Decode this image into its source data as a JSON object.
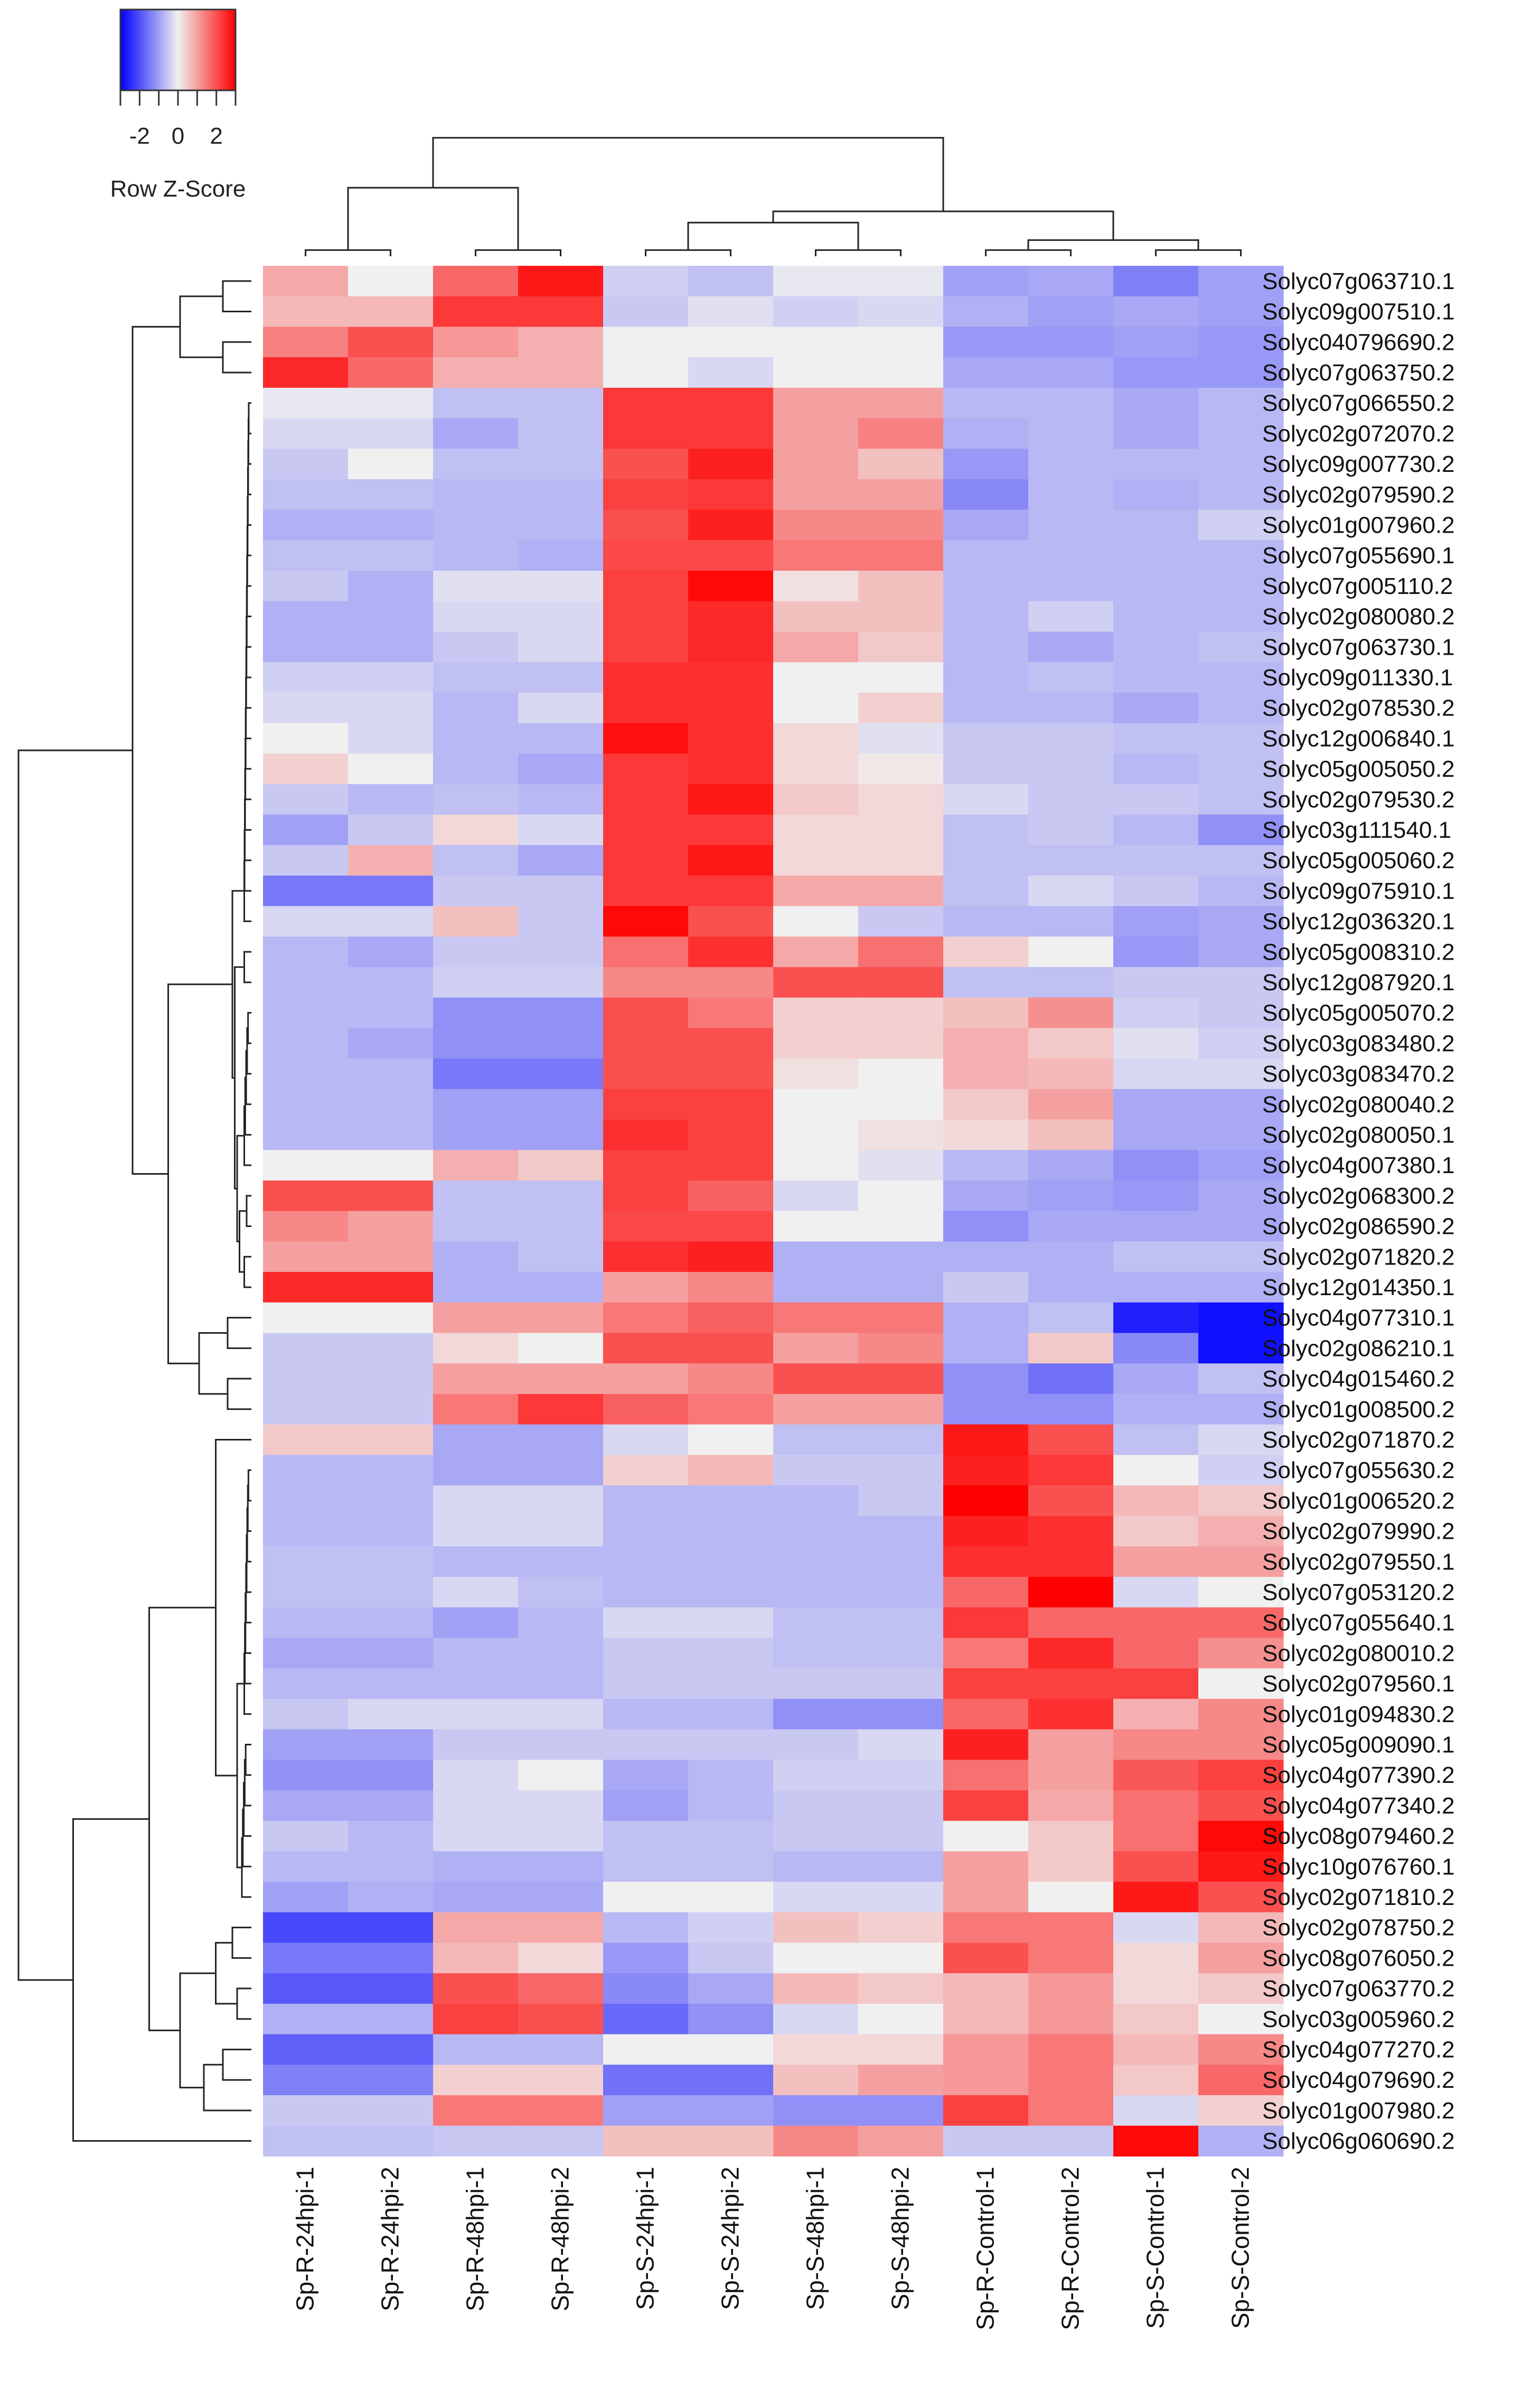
{
  "chart_data": {
    "type": "heatmap",
    "title": "",
    "legend": {
      "title": "Row Z-Score",
      "ticks": [
        "-2",
        "0",
        "2"
      ],
      "range": [
        -3,
        3
      ],
      "colors": {
        "low": "#0000ff",
        "mid": "#f0f0f0",
        "high": "#ff0000"
      },
      "placement": "top-left"
    },
    "columns": [
      "Sp-R-24hpi-1",
      "Sp-R-24hpi-2",
      "Sp-R-48hpi-1",
      "Sp-R-48hpi-2",
      "Sp-S-24hpi-1",
      "Sp-S-24hpi-2",
      "Sp-S-48hpi-1",
      "Sp-S-48hpi-2",
      "Sp-R-Control-1",
      "Sp-R-Control-2",
      "Sp-S-Control-1",
      "Sp-S-Control-2"
    ],
    "rows": [
      "Solyc07g063710.1",
      "Solyc09g007510.1",
      "Solyc040796690.2",
      "Solyc07g063750.2",
      "Solyc07g066550.2",
      "Solyc02g072070.2",
      "Solyc09g007730.2",
      "Solyc02g079590.2",
      "Solyc01g007960.2",
      "Solyc07g055690.1",
      "Solyc07g005110.2",
      "Solyc02g080080.2",
      "Solyc07g063730.1",
      "Solyc09g011330.1",
      "Solyc02g078530.2",
      "Solyc12g006840.1",
      "Solyc05g005050.2",
      "Solyc02g079530.2",
      "Solyc03g111540.1",
      "Solyc05g005060.2",
      "Solyc09g075910.1",
      "Solyc12g036320.1",
      "Solyc05g008310.2",
      "Solyc12g087920.1",
      "Solyc05g005070.2",
      "Solyc03g083480.2",
      "Solyc03g083470.2",
      "Solyc02g080040.2",
      "Solyc02g080050.1",
      "Solyc04g007380.1",
      "Solyc02g068300.2",
      "Solyc02g086590.2",
      "Solyc02g071820.2",
      "Solyc12g014350.1",
      "Solyc04g077310.1",
      "Solyc02g086210.1",
      "Solyc04g015460.2",
      "Solyc01g008500.2",
      "Solyc02g071870.2",
      "Solyc07g055630.2",
      "Solyc01g006520.2",
      "Solyc02g079990.2",
      "Solyc02g079550.1",
      "Solyc07g053120.2",
      "Solyc07g055640.1",
      "Solyc02g080010.2",
      "Solyc02g079560.1",
      "Solyc01g094830.2",
      "Solyc05g009090.1",
      "Solyc04g077390.2",
      "Solyc04g077340.2",
      "Solyc08g079460.2",
      "Solyc10g076760.1",
      "Solyc02g071810.2",
      "Solyc02g078750.2",
      "Solyc08g076050.2",
      "Solyc07g063770.2",
      "Solyc03g005960.2",
      "Solyc04g077270.2",
      "Solyc04g079690.2",
      "Solyc01g007980.2",
      "Solyc06g060690.2"
    ],
    "values": [
      [
        0.9,
        0.0,
        1.7,
        2.7,
        -0.4,
        -0.6,
        -0.1,
        -0.1,
        -1.0,
        -0.9,
        -1.4,
        -1.0
      ],
      [
        0.7,
        0.7,
        2.3,
        2.3,
        -0.5,
        -0.2,
        -0.4,
        -0.3,
        -0.8,
        -1.0,
        -0.9,
        -1.0
      ],
      [
        1.4,
        2.0,
        1.1,
        0.8,
        0.0,
        0.0,
        0.0,
        0.0,
        -1.1,
        -1.1,
        -1.0,
        -1.1
      ],
      [
        2.5,
        1.7,
        0.8,
        0.8,
        0.0,
        -0.3,
        0.0,
        0.0,
        -0.9,
        -0.9,
        -1.1,
        -1.1
      ],
      [
        -0.1,
        -0.1,
        -0.6,
        -0.6,
        2.3,
        2.3,
        1.0,
        1.0,
        -0.7,
        -0.7,
        -0.9,
        -0.7
      ],
      [
        -0.3,
        -0.3,
        -0.9,
        -0.6,
        2.3,
        2.3,
        1.0,
        1.4,
        -0.8,
        -0.7,
        -0.9,
        -0.7
      ],
      [
        -0.5,
        0.0,
        -0.6,
        -0.6,
        2.0,
        2.6,
        1.0,
        0.6,
        -1.1,
        -0.7,
        -0.7,
        -0.7
      ],
      [
        -0.6,
        -0.6,
        -0.7,
        -0.7,
        2.2,
        2.3,
        1.0,
        1.0,
        -1.3,
        -0.7,
        -0.8,
        -0.7
      ],
      [
        -0.8,
        -0.8,
        -0.7,
        -0.7,
        2.0,
        2.6,
        1.3,
        1.3,
        -0.9,
        -0.7,
        -0.7,
        -0.4
      ],
      [
        -0.6,
        -0.6,
        -0.7,
        -0.8,
        2.1,
        2.1,
        1.5,
        1.5,
        -0.7,
        -0.7,
        -0.7,
        -0.7
      ],
      [
        -0.5,
        -0.8,
        -0.2,
        -0.2,
        2.2,
        2.9,
        0.2,
        0.6,
        -0.7,
        -0.7,
        -0.7,
        -0.7
      ],
      [
        -0.8,
        -0.8,
        -0.3,
        -0.3,
        2.2,
        2.5,
        0.6,
        0.6,
        -0.7,
        -0.4,
        -0.7,
        -0.7
      ],
      [
        -0.8,
        -0.8,
        -0.5,
        -0.3,
        2.2,
        2.5,
        0.9,
        0.5,
        -0.7,
        -0.9,
        -0.7,
        -0.6
      ],
      [
        -0.4,
        -0.4,
        -0.6,
        -0.6,
        2.4,
        2.4,
        0.0,
        0.0,
        -0.7,
        -0.6,
        -0.7,
        -0.7
      ],
      [
        -0.3,
        -0.3,
        -0.7,
        -0.3,
        2.4,
        2.4,
        0.0,
        0.4,
        -0.7,
        -0.7,
        -0.9,
        -0.7
      ],
      [
        0.0,
        -0.3,
        -0.7,
        -0.7,
        2.8,
        2.4,
        0.3,
        -0.2,
        -0.5,
        -0.5,
        -0.6,
        -0.6
      ],
      [
        0.4,
        0.0,
        -0.7,
        -0.9,
        2.3,
        2.4,
        0.3,
        0.1,
        -0.5,
        -0.5,
        -0.7,
        -0.6
      ],
      [
        -0.5,
        -0.7,
        -0.6,
        -0.7,
        2.3,
        2.7,
        0.5,
        0.3,
        -0.3,
        -0.5,
        -0.5,
        -0.6
      ],
      [
        -1.0,
        -0.5,
        0.3,
        -0.3,
        2.3,
        2.3,
        0.3,
        0.3,
        -0.6,
        -0.5,
        -0.7,
        -1.2
      ],
      [
        -0.5,
        0.8,
        -0.6,
        -0.9,
        2.3,
        2.7,
        0.3,
        0.3,
        -0.6,
        -0.6,
        -0.6,
        -0.6
      ],
      [
        -1.5,
        -1.5,
        -0.5,
        -0.5,
        2.3,
        2.3,
        0.9,
        0.9,
        -0.6,
        -0.3,
        -0.5,
        -0.7
      ],
      [
        -0.3,
        -0.3,
        0.6,
        -0.5,
        2.9,
        2.0,
        0.0,
        -0.5,
        -0.7,
        -0.7,
        -1.0,
        -0.9
      ],
      [
        -0.7,
        -0.9,
        -0.5,
        -0.5,
        1.6,
        2.4,
        0.9,
        1.6,
        0.4,
        0.0,
        -1.1,
        -0.9
      ],
      [
        -0.7,
        -0.7,
        -0.4,
        -0.4,
        1.3,
        1.3,
        2.0,
        2.0,
        -0.6,
        -0.6,
        -0.5,
        -0.5
      ],
      [
        -0.7,
        -0.7,
        -1.2,
        -1.2,
        2.0,
        1.5,
        0.4,
        0.4,
        0.6,
        1.2,
        -0.4,
        -0.5
      ],
      [
        -0.7,
        -0.9,
        -1.2,
        -1.2,
        2.0,
        2.0,
        0.4,
        0.4,
        0.8,
        0.5,
        -0.2,
        -0.4
      ],
      [
        -0.7,
        -0.7,
        -1.5,
        -1.5,
        2.0,
        2.0,
        0.2,
        0.0,
        0.8,
        0.7,
        -0.3,
        -0.3
      ],
      [
        -0.7,
        -0.7,
        -1.0,
        -1.0,
        2.2,
        2.2,
        0.0,
        0.0,
        0.5,
        1.0,
        -0.9,
        -0.9
      ],
      [
        -0.7,
        -0.7,
        -1.0,
        -1.0,
        2.4,
        2.2,
        0.0,
        0.2,
        0.3,
        0.6,
        -0.9,
        -0.9
      ],
      [
        0.0,
        0.0,
        0.8,
        0.5,
        2.2,
        2.2,
        0.0,
        -0.2,
        -0.7,
        -0.9,
        -1.2,
        -1.0
      ],
      [
        2.0,
        2.0,
        -0.6,
        -0.6,
        2.2,
        1.8,
        -0.3,
        0.0,
        -0.9,
        -1.0,
        -1.1,
        -0.9
      ],
      [
        1.3,
        1.0,
        -0.6,
        -0.6,
        2.1,
        2.1,
        0.0,
        0.0,
        -1.2,
        -0.9,
        -0.9,
        -0.9
      ],
      [
        1.0,
        1.0,
        -0.8,
        -0.6,
        2.4,
        2.6,
        -0.8,
        -0.8,
        -0.8,
        -0.8,
        -0.6,
        -0.6
      ],
      [
        2.5,
        2.5,
        -0.8,
        -0.8,
        1.0,
        1.3,
        -0.8,
        -0.8,
        -0.5,
        -0.8,
        -0.8,
        -0.8
      ],
      [
        0.0,
        0.0,
        1.0,
        1.0,
        1.5,
        1.8,
        1.5,
        1.5,
        -0.8,
        -0.6,
        -2.6,
        -2.8
      ],
      [
        -0.5,
        -0.5,
        0.3,
        0.0,
        2.0,
        2.0,
        1.0,
        1.3,
        -0.8,
        0.5,
        -1.3,
        -2.8
      ],
      [
        -0.5,
        -0.5,
        1.0,
        1.0,
        1.0,
        1.3,
        2.0,
        2.0,
        -1.2,
        -1.6,
        -0.9,
        -0.6
      ],
      [
        -0.5,
        -0.5,
        1.5,
        2.3,
        1.8,
        1.5,
        1.0,
        1.0,
        -1.2,
        -1.2,
        -0.8,
        -0.8
      ],
      [
        0.5,
        0.5,
        -0.9,
        -0.9,
        -0.3,
        0.0,
        -0.6,
        -0.6,
        2.7,
        2.0,
        -0.6,
        -0.3
      ],
      [
        -0.7,
        -0.7,
        -0.9,
        -0.9,
        0.4,
        0.7,
        -0.5,
        -0.5,
        2.6,
        2.3,
        0.0,
        -0.4
      ],
      [
        -0.7,
        -0.7,
        -0.3,
        -0.3,
        -0.7,
        -0.7,
        -0.7,
        -0.5,
        3.0,
        2.0,
        0.7,
        0.5
      ],
      [
        -0.7,
        -0.7,
        -0.3,
        -0.3,
        -0.7,
        -0.7,
        -0.7,
        -0.7,
        2.6,
        2.4,
        0.5,
        0.8
      ],
      [
        -0.6,
        -0.6,
        -0.7,
        -0.7,
        -0.7,
        -0.7,
        -0.7,
        -0.7,
        2.4,
        2.4,
        1.0,
        1.0
      ],
      [
        -0.6,
        -0.6,
        -0.3,
        -0.6,
        -0.7,
        -0.7,
        -0.7,
        -0.7,
        1.7,
        3.0,
        -0.3,
        0.0
      ],
      [
        -0.7,
        -0.7,
        -1.0,
        -0.7,
        -0.3,
        -0.3,
        -0.6,
        -0.6,
        2.3,
        1.7,
        1.7,
        1.7
      ],
      [
        -0.9,
        -0.9,
        -0.7,
        -0.7,
        -0.5,
        -0.5,
        -0.6,
        -0.6,
        1.5,
        2.5,
        1.7,
        1.2
      ],
      [
        -0.7,
        -0.7,
        -0.7,
        -0.7,
        -0.5,
        -0.5,
        -0.5,
        -0.5,
        2.2,
        2.2,
        2.2,
        0.0
      ],
      [
        -0.5,
        -0.3,
        -0.3,
        -0.3,
        -0.7,
        -0.7,
        -1.2,
        -1.2,
        1.7,
        2.4,
        0.8,
        1.3
      ],
      [
        -1.0,
        -1.0,
        -0.5,
        -0.5,
        -0.5,
        -0.5,
        -0.5,
        -0.3,
        2.6,
        1.0,
        1.3,
        1.3
      ],
      [
        -1.2,
        -1.2,
        -0.3,
        0.0,
        -0.9,
        -0.7,
        -0.4,
        -0.4,
        1.6,
        1.0,
        1.9,
        2.2
      ],
      [
        -0.9,
        -0.9,
        -0.3,
        -0.3,
        -1.0,
        -0.7,
        -0.5,
        -0.5,
        2.2,
        0.9,
        1.6,
        2.0
      ],
      [
        -0.5,
        -0.7,
        -0.3,
        -0.3,
        -0.6,
        -0.6,
        -0.5,
        -0.5,
        0.0,
        0.5,
        1.6,
        2.9
      ],
      [
        -0.7,
        -0.7,
        -0.8,
        -0.8,
        -0.6,
        -0.6,
        -0.7,
        -0.7,
        1.0,
        0.5,
        2.0,
        2.7
      ],
      [
        -1.0,
        -0.8,
        -0.9,
        -0.9,
        0.0,
        0.0,
        -0.3,
        -0.3,
        1.0,
        0.0,
        2.7,
        2.0
      ],
      [
        -2.1,
        -2.1,
        0.9,
        0.9,
        -0.7,
        -0.4,
        0.6,
        0.4,
        1.5,
        1.5,
        -0.3,
        0.7
      ],
      [
        -1.5,
        -1.5,
        0.7,
        0.3,
        -1.1,
        -0.5,
        0.0,
        0.0,
        2.0,
        1.5,
        0.3,
        1.0
      ],
      [
        -1.9,
        -1.9,
        2.0,
        1.7,
        -1.3,
        -0.9,
        0.7,
        0.5,
        0.7,
        1.1,
        0.3,
        0.5
      ],
      [
        -0.8,
        -0.8,
        2.2,
        2.0,
        -1.7,
        -1.2,
        -0.3,
        0.0,
        0.7,
        1.1,
        0.5,
        0.0
      ],
      [
        -1.8,
        -1.8,
        -0.7,
        -0.7,
        0.0,
        0.0,
        0.3,
        0.3,
        1.1,
        1.5,
        0.7,
        1.3
      ],
      [
        -1.4,
        -1.4,
        0.4,
        0.4,
        -1.6,
        -1.6,
        0.6,
        1.0,
        1.1,
        1.5,
        0.5,
        1.7
      ],
      [
        -0.5,
        -0.5,
        1.5,
        1.5,
        -1.0,
        -1.0,
        -1.2,
        -1.2,
        2.2,
        1.5,
        -0.3,
        0.4
      ],
      [
        -0.6,
        -0.6,
        -0.5,
        -0.5,
        0.6,
        0.6,
        1.3,
        1.0,
        -0.5,
        -0.5,
        2.9,
        -0.8
      ]
    ]
  }
}
